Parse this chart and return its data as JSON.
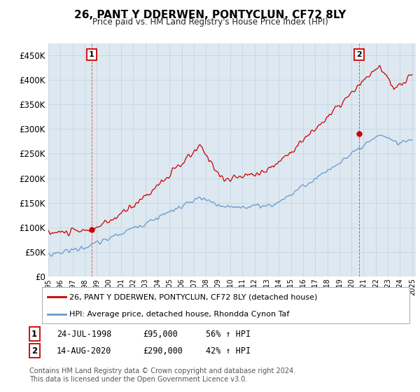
{
  "title": "26, PANT Y DDERWEN, PONTYCLUN, CF72 8LY",
  "subtitle": "Price paid vs. HM Land Registry's House Price Index (HPI)",
  "legend_line1": "26, PANT Y DDERWEN, PONTYCLUN, CF72 8LY (detached house)",
  "legend_line2": "HPI: Average price, detached house, Rhondda Cynon Taf",
  "annotation1_label": "1",
  "annotation1_date": "24-JUL-1998",
  "annotation1_price": "£95,000",
  "annotation1_hpi": "56% ↑ HPI",
  "annotation2_label": "2",
  "annotation2_date": "14-AUG-2020",
  "annotation2_price": "£290,000",
  "annotation2_hpi": "42% ↑ HPI",
  "footnote": "Contains HM Land Registry data © Crown copyright and database right 2024.\nThis data is licensed under the Open Government Licence v3.0.",
  "red_color": "#cc0000",
  "blue_color": "#6699cc",
  "grid_color": "#c8d8e8",
  "bg_color": "#ffffff",
  "plot_bg_color": "#dde8f0",
  "ylim": [
    0,
    475000
  ],
  "yticks": [
    0,
    50000,
    100000,
    150000,
    200000,
    250000,
    300000,
    350000,
    400000,
    450000
  ],
  "sale1_year": 1998.56,
  "sale1_price": 95000,
  "sale2_year": 2020.62,
  "sale2_price": 290000,
  "red_noise_seed": 10,
  "blue_noise_seed": 20
}
